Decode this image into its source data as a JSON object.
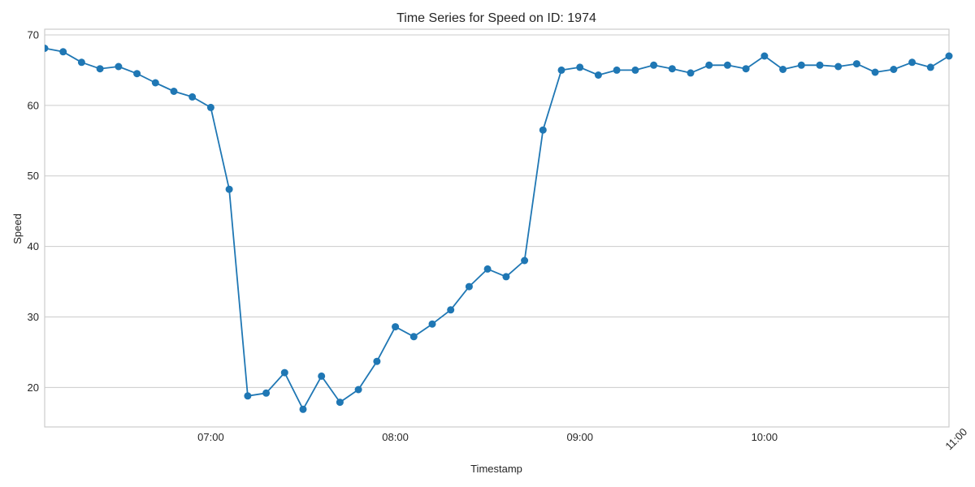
{
  "chart_data": {
    "type": "line",
    "title": "Time Series for Speed on ID: 1974",
    "xlabel": "Timestamp",
    "ylabel": "Speed",
    "x_tick_labels": [
      "07:00",
      "08:00",
      "09:00",
      "10:00",
      "11:00"
    ],
    "y_ticks": [
      20,
      30,
      40,
      50,
      60,
      70
    ],
    "xlim": [
      "06:06",
      "11:00"
    ],
    "ylim": [
      14.4,
      70.8
    ],
    "grid": "horizontal",
    "series": [
      {
        "color": "#1f77b4",
        "x": [
          "06:06",
          "06:12",
          "06:18",
          "06:24",
          "06:30",
          "06:36",
          "06:42",
          "06:48",
          "06:54",
          "07:00",
          "07:06",
          "07:12",
          "07:18",
          "07:24",
          "07:30",
          "07:36",
          "07:42",
          "07:48",
          "07:54",
          "08:00",
          "08:06",
          "08:12",
          "08:18",
          "08:24",
          "08:30",
          "08:36",
          "08:42",
          "08:48",
          "08:54",
          "09:00",
          "09:06",
          "09:12",
          "09:18",
          "09:24",
          "09:30",
          "09:36",
          "09:42",
          "09:48",
          "09:54",
          "10:00",
          "10:06",
          "10:12",
          "10:18",
          "10:24",
          "10:30",
          "10:36",
          "10:42",
          "10:48",
          "10:54",
          "11:00"
        ],
        "values": [
          68.1,
          67.6,
          66.1,
          65.2,
          65.5,
          64.5,
          63.2,
          62.0,
          61.2,
          59.7,
          48.1,
          18.8,
          19.2,
          22.1,
          16.9,
          21.6,
          17.9,
          19.7,
          23.7,
          28.6,
          27.2,
          29.0,
          31.0,
          34.3,
          36.8,
          35.7,
          38.0,
          56.5,
          65.0,
          65.4,
          64.3,
          65.0,
          65.0,
          65.7,
          65.2,
          64.6,
          65.7,
          65.7,
          65.2,
          67.0,
          65.1,
          65.7,
          65.7,
          65.5,
          65.9,
          64.7,
          65.1,
          66.1,
          65.4,
          67.0
        ]
      }
    ]
  }
}
